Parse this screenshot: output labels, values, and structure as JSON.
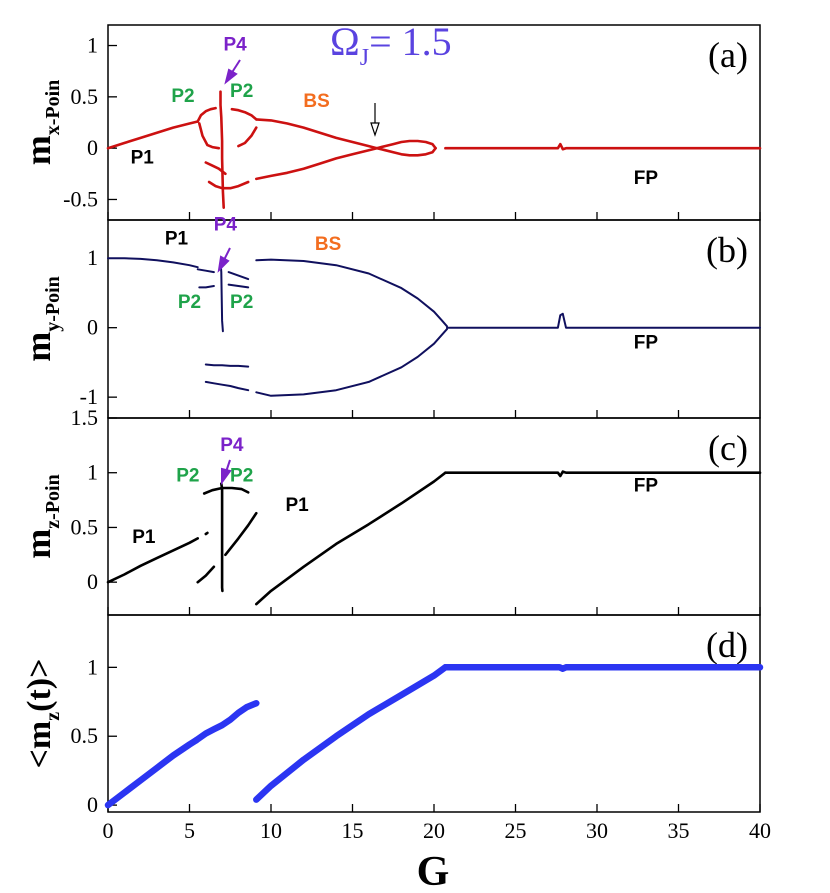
{
  "chart_data": {
    "type": "scatter",
    "title": "ΩJ= 1.5",
    "title_parts": {
      "symbol": "Ω",
      "subscript": "J",
      "rest": "= 1.5"
    },
    "xlabel": "G",
    "xlim": [
      0,
      40
    ],
    "xticks": [
      "0",
      "5",
      "10",
      "15",
      "20",
      "25",
      "30",
      "35",
      "40"
    ],
    "colors": {
      "a": "#cc1111",
      "b": "#10105e",
      "c": "#000000",
      "d": "#2b35f2",
      "omega": "#5a43e0",
      "P1": "#000000",
      "P2": "#1fa34a",
      "P4": "#7b22c9",
      "BS": "#f36d1f",
      "FP": "#000000"
    },
    "panels": [
      {
        "id": "a",
        "tag": "(a)",
        "ylabel": "m",
        "ylabel_sub": "x-Poin",
        "ylim": [
          -0.7,
          1.2
        ],
        "yticks": [
          -0.5,
          0,
          0.5,
          1
        ],
        "ytick_labels": [
          "-0.5",
          "0",
          "0.5",
          "1"
        ],
        "series": [
          {
            "name": "P1",
            "x": [
              0,
              1,
              2,
              3,
              4,
              5,
              5.5
            ],
            "y": [
              0,
              0.05,
              0.1,
              0.15,
              0.2,
              0.24,
              0.26
            ]
          },
          {
            "name": "P2-upper",
            "x": [
              5.5,
              5.7,
              6,
              6.3,
              6.6
            ],
            "y": [
              0.26,
              0.32,
              0.36,
              0.38,
              0.39
            ]
          },
          {
            "name": "P2-lower",
            "x": [
              5.6,
              5.8,
              6.1,
              6.4,
              6.8
            ],
            "y": [
              0.24,
              0.12,
              0.03,
              0.01,
              0.0
            ]
          },
          {
            "name": "P2-mid",
            "x": [
              6,
              6.4,
              6.8,
              7.2
            ],
            "y": [
              -0.14,
              -0.17,
              -0.2,
              -0.25
            ]
          },
          {
            "name": "P2-bottom",
            "x": [
              6.2,
              6.6,
              7,
              7.5,
              8,
              8.6
            ],
            "y": [
              -0.33,
              -0.37,
              -0.39,
              -0.39,
              -0.37,
              -0.33
            ]
          },
          {
            "name": "P4",
            "x": [
              6.9,
              6.9,
              6.95,
              7.0,
              7.0,
              7.05,
              7.1
            ],
            "y": [
              0.55,
              0.42,
              0.3,
              0.07,
              -0.1,
              -0.42,
              -0.58
            ]
          },
          {
            "name": "P2-right-upper",
            "x": [
              7.6,
              8,
              8.4,
              8.8,
              9.1
            ],
            "y": [
              0.38,
              0.37,
              0.35,
              0.32,
              0.28
            ]
          },
          {
            "name": "P2-right-lower",
            "x": [
              8,
              8.4,
              8.8,
              9.1
            ],
            "y": [
              0.02,
              0.05,
              0.12,
              0.2
            ]
          },
          {
            "name": "BS-upper",
            "x": [
              9.1,
              10,
              11,
              12,
              13,
              14,
              15,
              16,
              16.5
            ],
            "y": [
              0.28,
              0.27,
              0.24,
              0.2,
              0.15,
              0.1,
              0.06,
              0.02,
              0.0
            ]
          },
          {
            "name": "BS-lower",
            "x": [
              9.1,
              10,
              11,
              12,
              13,
              14,
              15,
              16,
              16.5
            ],
            "y": [
              -0.3,
              -0.27,
              -0.24,
              -0.2,
              -0.15,
              -0.1,
              -0.06,
              -0.02,
              0.0
            ]
          },
          {
            "name": "loop-upper",
            "x": [
              16.5,
              17,
              17.5,
              18,
              18.5,
              19,
              19.5,
              19.9,
              20.1
            ],
            "y": [
              0.0,
              -0.02,
              -0.04,
              -0.06,
              -0.07,
              -0.07,
              -0.06,
              -0.04,
              0.0
            ]
          },
          {
            "name": "loop-lower",
            "x": [
              16.5,
              17,
              17.5,
              18,
              18.5,
              19,
              19.5,
              19.9,
              20.1
            ],
            "y": [
              0.0,
              0.02,
              0.04,
              0.06,
              0.07,
              0.07,
              0.06,
              0.04,
              0.0
            ]
          },
          {
            "name": "FP",
            "x": [
              20.7,
              25,
              27.6,
              27.75,
              27.9,
              28.1,
              30,
              35,
              40
            ],
            "y": [
              0,
              0,
              0,
              0.04,
              -0.01,
              0,
              0,
              0,
              0
            ]
          }
        ],
        "annotations": [
          {
            "text": "P1",
            "x": 2.1,
            "y": -0.15,
            "color": "P1"
          },
          {
            "text": "P2",
            "x": 4.6,
            "y": 0.45,
            "color": "P2"
          },
          {
            "text": "P2",
            "x": 8.2,
            "y": 0.5,
            "color": "P2"
          },
          {
            "text": "P4",
            "x": 7.8,
            "y": 0.95,
            "color": "P4"
          },
          {
            "text": "BS",
            "x": 12.8,
            "y": 0.4,
            "color": "BS"
          },
          {
            "text": "FP",
            "x": 33,
            "y": -0.35,
            "color": "FP"
          }
        ]
      },
      {
        "id": "b",
        "tag": "(b)",
        "ylabel": "m",
        "ylabel_sub": "y-Poin",
        "ylim": [
          -1.3,
          1.55
        ],
        "yticks": [
          -1,
          0,
          1
        ],
        "ytick_labels": [
          "-1",
          "0",
          "1"
        ],
        "series": [
          {
            "name": "P1",
            "x": [
              0,
              1,
              2,
              3,
              4,
              5,
              5.5
            ],
            "y": [
              1,
              1.0,
              0.99,
              0.97,
              0.94,
              0.9,
              0.87
            ]
          },
          {
            "name": "P2-upper",
            "x": [
              5.5,
              6,
              6.5
            ],
            "y": [
              0.84,
              0.82,
              0.8
            ]
          },
          {
            "name": "P2-upper-right",
            "x": [
              7.4,
              8,
              8.6
            ],
            "y": [
              0.8,
              0.75,
              0.7
            ]
          },
          {
            "name": "P2-lower",
            "x": [
              5.6,
              6,
              6.5
            ],
            "y": [
              0.58,
              0.58,
              0.6
            ]
          },
          {
            "name": "P2-lower-right",
            "x": [
              7.4,
              8,
              8.6
            ],
            "y": [
              0.62,
              0.6,
              0.58
            ]
          },
          {
            "name": "P4",
            "x": [
              6.9,
              6.95,
              7.0,
              7.05
            ],
            "y": [
              0.95,
              0.8,
              0.1,
              -0.05
            ]
          },
          {
            "name": "neg-upper",
            "x": [
              6,
              6.5,
              7,
              7.5,
              8,
              8.6
            ],
            "y": [
              -0.53,
              -0.54,
              -0.54,
              -0.55,
              -0.55,
              -0.56
            ]
          },
          {
            "name": "neg-lower",
            "x": [
              6,
              6.5,
              7,
              7.5,
              8,
              8.6
            ],
            "y": [
              -0.78,
              -0.8,
              -0.82,
              -0.84,
              -0.87,
              -0.9
            ]
          },
          {
            "name": "BS-upper",
            "x": [
              9.1,
              10,
              12,
              14,
              16,
              18,
              19,
              20,
              20.5,
              20.8
            ],
            "y": [
              0.97,
              0.98,
              0.96,
              0.9,
              0.78,
              0.57,
              0.42,
              0.23,
              0.1,
              0.02
            ]
          },
          {
            "name": "BS-lower",
            "x": [
              9.1,
              10,
              12,
              14,
              16,
              18,
              19,
              20,
              20.5,
              20.8
            ],
            "y": [
              -0.93,
              -0.98,
              -0.96,
              -0.9,
              -0.78,
              -0.57,
              -0.42,
              -0.23,
              -0.1,
              -0.02
            ]
          },
          {
            "name": "FP",
            "x": [
              20.8,
              25,
              27.6,
              27.75,
              27.9,
              28.1,
              30,
              35,
              40
            ],
            "y": [
              0,
              0,
              0,
              0.18,
              0.2,
              0.0,
              0,
              0,
              0
            ]
          }
        ],
        "annotations": [
          {
            "text": "P1",
            "x": 4.2,
            "y": 1.2,
            "color": "P1"
          },
          {
            "text": "P4",
            "x": 7.2,
            "y": 1.4,
            "color": "P4"
          },
          {
            "text": "BS",
            "x": 13.5,
            "y": 1.12,
            "color": "BS"
          },
          {
            "text": "P2",
            "x": 5.0,
            "y": 0.28,
            "color": "P2"
          },
          {
            "text": "P2",
            "x": 8.2,
            "y": 0.28,
            "color": "P2"
          },
          {
            "text": "FP",
            "x": 33,
            "y": -0.3,
            "color": "FP"
          }
        ]
      },
      {
        "id": "c",
        "tag": "(c)",
        "ylabel": "m",
        "ylabel_sub": "z-Poin",
        "ylim": [
          -0.3,
          1.5
        ],
        "yticks": [
          0,
          0.5,
          1,
          1.5
        ],
        "ytick_labels": [
          "0",
          "0.5",
          "1",
          "1.5"
        ],
        "series": [
          {
            "name": "P1",
            "x": [
              0,
              1,
              2,
              3,
              4,
              5,
              5.5
            ],
            "y": [
              0,
              0.07,
              0.15,
              0.22,
              0.29,
              0.36,
              0.4
            ]
          },
          {
            "name": "P1-dot",
            "x": [
              6.0,
              6.1
            ],
            "y": [
              0.44,
              0.45
            ]
          },
          {
            "name": "P2-top",
            "x": [
              5.9,
              6.4,
              7,
              7.6,
              8.2,
              8.6
            ],
            "y": [
              0.81,
              0.84,
              0.86,
              0.86,
              0.85,
              0.82
            ]
          },
          {
            "name": "P2-rising",
            "x": [
              5.5,
              6,
              6.5
            ],
            "y": [
              0.0,
              0.06,
              0.14
            ]
          },
          {
            "name": "P2-rising-right",
            "x": [
              7.2,
              8,
              8.6,
              9.1
            ],
            "y": [
              0.25,
              0.4,
              0.52,
              0.63
            ]
          },
          {
            "name": "P4",
            "x": [
              6.95,
              7.0,
              7.0,
              7.02
            ],
            "y": [
              0.9,
              0.85,
              -0.05,
              -0.08
            ]
          },
          {
            "name": "P1-right",
            "x": [
              9.1,
              10,
              12,
              14,
              16,
              18,
              20,
              20.7
            ],
            "y": [
              -0.2,
              -0.08,
              0.14,
              0.35,
              0.53,
              0.72,
              0.92,
              1.0
            ]
          },
          {
            "name": "FP",
            "x": [
              20.7,
              25,
              27.6,
              27.75,
              27.9,
              28.1,
              30,
              35,
              40
            ],
            "y": [
              1,
              1,
              1,
              0.97,
              1.01,
              1,
              1,
              1,
              1
            ]
          }
        ],
        "annotations": [
          {
            "text": "P1",
            "x": 2.2,
            "y": 0.36,
            "color": "P1"
          },
          {
            "text": "P2",
            "x": 4.9,
            "y": 0.92,
            "color": "P2"
          },
          {
            "text": "P2",
            "x": 8.2,
            "y": 0.92,
            "color": "P2"
          },
          {
            "text": "P4",
            "x": 7.6,
            "y": 1.2,
            "color": "P4"
          },
          {
            "text": "P1",
            "x": 11.6,
            "y": 0.65,
            "color": "P1"
          },
          {
            "text": "FP",
            "x": 33,
            "y": 0.83,
            "color": "FP"
          }
        ]
      },
      {
        "id": "d",
        "tag": "(d)",
        "ylabel": "<m",
        "ylabel_sub": "z",
        "ylabel_end": "(t)>",
        "ylim": [
          -0.05,
          1.38
        ],
        "yticks": [
          0,
          0.5,
          1
        ],
        "ytick_labels": [
          "0",
          "0.5",
          "1"
        ],
        "series": [
          {
            "name": "avg-1",
            "x": [
              0,
              1,
              2,
              3,
              4,
              5,
              5.4
            ],
            "y": [
              0,
              0.09,
              0.18,
              0.27,
              0.36,
              0.44,
              0.47
            ]
          },
          {
            "name": "avg-2",
            "x": [
              5.4,
              6,
              6.5,
              7,
              7.5,
              8,
              8.5,
              9.1
            ],
            "y": [
              0.47,
              0.52,
              0.55,
              0.58,
              0.62,
              0.67,
              0.71,
              0.74
            ]
          },
          {
            "name": "avg-3",
            "x": [
              9.1,
              10,
              12,
              14,
              16,
              18,
              20,
              20.7
            ],
            "y": [
              0.04,
              0.14,
              0.33,
              0.5,
              0.66,
              0.8,
              0.94,
              1.0
            ]
          },
          {
            "name": "avg-4",
            "x": [
              20.7,
              25,
              27.7,
              27.9,
              28.1,
              30,
              35,
              40
            ],
            "y": [
              1,
              1,
              1,
              0.99,
              1,
              1,
              1,
              1
            ]
          }
        ],
        "annotations": []
      }
    ]
  }
}
